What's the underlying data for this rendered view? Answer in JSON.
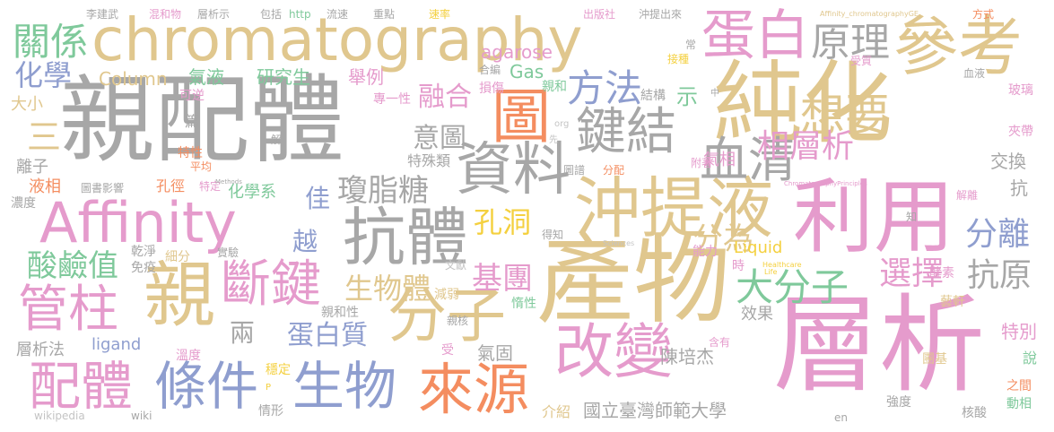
{
  "cloud": {
    "palette": {
      "gray": "#a7a7a7",
      "tan": "#e0c78e",
      "pink": "#e59bcc",
      "blue": "#8f9ecf",
      "green": "#7fc99b",
      "orange": "#f48d60",
      "yellow": "#f4d03f",
      "lightgray": "#c4c4c4"
    },
    "words": [
      {
        "text": "chromatography",
        "color": "tan"
      },
      {
        "text": "親配體",
        "color": "gray"
      },
      {
        "text": "純化",
        "color": "tan"
      },
      {
        "text": "層析",
        "color": "pink"
      },
      {
        "text": "產物",
        "color": "tan"
      },
      {
        "text": "利用",
        "color": "pink"
      },
      {
        "text": "Affinity",
        "color": "pink"
      },
      {
        "text": "沖提液",
        "color": "tan"
      },
      {
        "text": "參考",
        "color": "tan"
      },
      {
        "text": "蛋白",
        "color": "pink"
      },
      {
        "text": "抗體",
        "color": "gray"
      },
      {
        "text": "親",
        "color": "tan"
      },
      {
        "text": "資料",
        "color": "gray"
      },
      {
        "text": "圖",
        "color": "orange"
      },
      {
        "text": "鍵結",
        "color": "gray"
      },
      {
        "text": "分子",
        "color": "tan"
      },
      {
        "text": "改變",
        "color": "pink"
      },
      {
        "text": "來源",
        "color": "orange"
      },
      {
        "text": "生物",
        "color": "blue"
      },
      {
        "text": "條件",
        "color": "blue"
      },
      {
        "text": "配體",
        "color": "pink"
      },
      {
        "text": "管柱",
        "color": "pink"
      },
      {
        "text": "斷鍵",
        "color": "pink"
      },
      {
        "text": "血清",
        "color": "gray"
      },
      {
        "text": "想要",
        "color": "tan"
      },
      {
        "text": "原理",
        "color": "gray"
      },
      {
        "text": "關係",
        "color": "green"
      },
      {
        "text": "化學",
        "color": "blue"
      },
      {
        "text": "方法",
        "color": "blue"
      },
      {
        "text": "相層析",
        "color": "pink"
      },
      {
        "text": "瓊脂糖",
        "color": "gray"
      },
      {
        "text": "分離",
        "color": "blue"
      },
      {
        "text": "大分子",
        "color": "green"
      },
      {
        "text": "選擇",
        "color": "pink"
      },
      {
        "text": "抗原",
        "color": "gray"
      },
      {
        "text": "分為",
        "color": "tan"
      },
      {
        "text": "酸鹼值",
        "color": "green"
      },
      {
        "text": "基團",
        "color": "pink"
      },
      {
        "text": "孔洞",
        "color": "yellow"
      },
      {
        "text": "生物體",
        "color": "tan"
      },
      {
        "text": "蛋白質",
        "color": "blue"
      },
      {
        "text": "意圖",
        "color": "gray"
      },
      {
        "text": "融合",
        "color": "pink"
      },
      {
        "text": "研究生",
        "color": "green"
      },
      {
        "text": "氣液",
        "color": "green"
      },
      {
        "text": "Column",
        "color": "tan"
      },
      {
        "text": "舉例",
        "color": "pink"
      },
      {
        "text": "專一性",
        "color": "pink"
      },
      {
        "text": "agarose",
        "color": "pink"
      },
      {
        "text": "Gas",
        "color": "green"
      },
      {
        "text": "損傷",
        "color": "pink"
      },
      {
        "text": "親和",
        "color": "green"
      },
      {
        "text": "合編",
        "color": "gray"
      },
      {
        "text": "結構",
        "color": "gray"
      },
      {
        "text": "示",
        "color": "green"
      },
      {
        "text": "Liquid",
        "color": "yellow"
      },
      {
        "text": "氣相",
        "color": "pink"
      },
      {
        "text": "交換",
        "color": "gray"
      },
      {
        "text": "特殊類",
        "color": "gray"
      },
      {
        "text": "大小",
        "color": "tan"
      },
      {
        "text": "可逆",
        "color": "pink"
      },
      {
        "text": "三",
        "color": "tan"
      },
      {
        "text": "離子",
        "color": "gray"
      },
      {
        "text": "篇",
        "color": "gray"
      },
      {
        "text": "特性",
        "color": "orange"
      },
      {
        "text": "平均",
        "color": "orange"
      },
      {
        "text": "液相",
        "color": "orange"
      },
      {
        "text": "孔徑",
        "color": "orange"
      },
      {
        "text": "特定",
        "color": "pink"
      },
      {
        "text": "圖書影響",
        "color": "gray"
      },
      {
        "text": "化學系",
        "color": "green"
      },
      {
        "text": "濃度",
        "color": "gray"
      },
      {
        "text": "佳",
        "color": "blue"
      },
      {
        "text": "越",
        "color": "blue"
      },
      {
        "text": "兩",
        "color": "gray"
      },
      {
        "text": "乾淨",
        "color": "gray"
      },
      {
        "text": "免疫",
        "color": "gray"
      },
      {
        "text": "細分",
        "color": "tan"
      },
      {
        "text": "實驗",
        "color": "gray"
      },
      {
        "text": "文獻",
        "color": "lightgray"
      },
      {
        "text": "得知",
        "color": "gray"
      },
      {
        "text": "能力",
        "color": "pink"
      },
      {
        "text": "時",
        "color": "pink"
      },
      {
        "text": "效果",
        "color": "gray"
      },
      {
        "text": "陳培杰",
        "color": "gray"
      },
      {
        "text": "特別",
        "color": "pink"
      },
      {
        "text": "氣固",
        "color": "gray"
      },
      {
        "text": "介紹",
        "color": "tan"
      },
      {
        "text": "國立臺灣師範大學",
        "color": "gray"
      },
      {
        "text": "酵素",
        "color": "pink"
      },
      {
        "text": "藝軒",
        "color": "tan"
      },
      {
        "text": "團基",
        "color": "tan"
      },
      {
        "text": "層析法",
        "color": "gray"
      },
      {
        "text": "ligand",
        "color": "blue"
      },
      {
        "text": "親和性",
        "color": "gray"
      },
      {
        "text": "減弱",
        "color": "tan"
      },
      {
        "text": "親核",
        "color": "gray"
      },
      {
        "text": "惰性",
        "color": "green"
      },
      {
        "text": "溫度",
        "color": "pink"
      },
      {
        "text": "受",
        "color": "pink"
      },
      {
        "text": "含有",
        "color": "pink"
      },
      {
        "text": "穩定",
        "color": "yellow"
      },
      {
        "text": "情形",
        "color": "gray"
      },
      {
        "text": "wikipedia",
        "color": "lightgray"
      },
      {
        "text": "wiki",
        "color": "gray"
      },
      {
        "text": "強度",
        "color": "gray"
      },
      {
        "text": "之間",
        "color": "orange"
      },
      {
        "text": "核酸",
        "color": "gray"
      },
      {
        "text": "動相",
        "color": "green"
      },
      {
        "text": "說",
        "color": "green"
      },
      {
        "text": "李建武",
        "color": "gray"
      },
      {
        "text": "混和物",
        "color": "pink"
      },
      {
        "text": "層析示",
        "color": "gray"
      },
      {
        "text": "包括",
        "color": "gray"
      },
      {
        "text": "http",
        "color": "green"
      },
      {
        "text": "流速",
        "color": "gray"
      },
      {
        "text": "重點",
        "color": "gray"
      },
      {
        "text": "速率",
        "color": "yellow"
      },
      {
        "text": "出版社",
        "color": "pink"
      },
      {
        "text": "沖提出來",
        "color": "gray"
      },
      {
        "text": "Affinity_chromatographyGE",
        "color": "tan"
      },
      {
        "text": "方式",
        "color": "orange"
      },
      {
        "text": "接種",
        "color": "yellow"
      },
      {
        "text": "受質",
        "color": "pink"
      },
      {
        "text": "常",
        "color": "gray"
      },
      {
        "text": "血液",
        "color": "gray"
      },
      {
        "text": "玻璃",
        "color": "pink"
      },
      {
        "text": "夾帶",
        "color": "pink"
      },
      {
        "text": "中",
        "color": "gray"
      },
      {
        "text": "解離",
        "color": "pink"
      },
      {
        "text": "知",
        "color": "gray"
      },
      {
        "text": "抗",
        "color": "gray"
      },
      {
        "text": "附著",
        "color": "pink"
      },
      {
        "text": "分配",
        "color": "orange"
      },
      {
        "text": "圖譜",
        "color": "gray"
      },
      {
        "text": "ChromatographyPrinciples",
        "color": "pink"
      },
      {
        "text": "org",
        "color": "lightgray"
      },
      {
        "text": "先",
        "color": "lightgray"
      },
      {
        "text": "解",
        "color": "gray"
      },
      {
        "text": "Methods",
        "color": "gray"
      },
      {
        "text": "Sciences",
        "color": "lightgray"
      },
      {
        "text": "Healthcare",
        "color": "yellow"
      },
      {
        "text": "Life",
        "color": "yellow"
      },
      {
        "text": "P",
        "color": "yellow"
      },
      {
        "text": "en",
        "color": "gray"
      }
    ]
  }
}
